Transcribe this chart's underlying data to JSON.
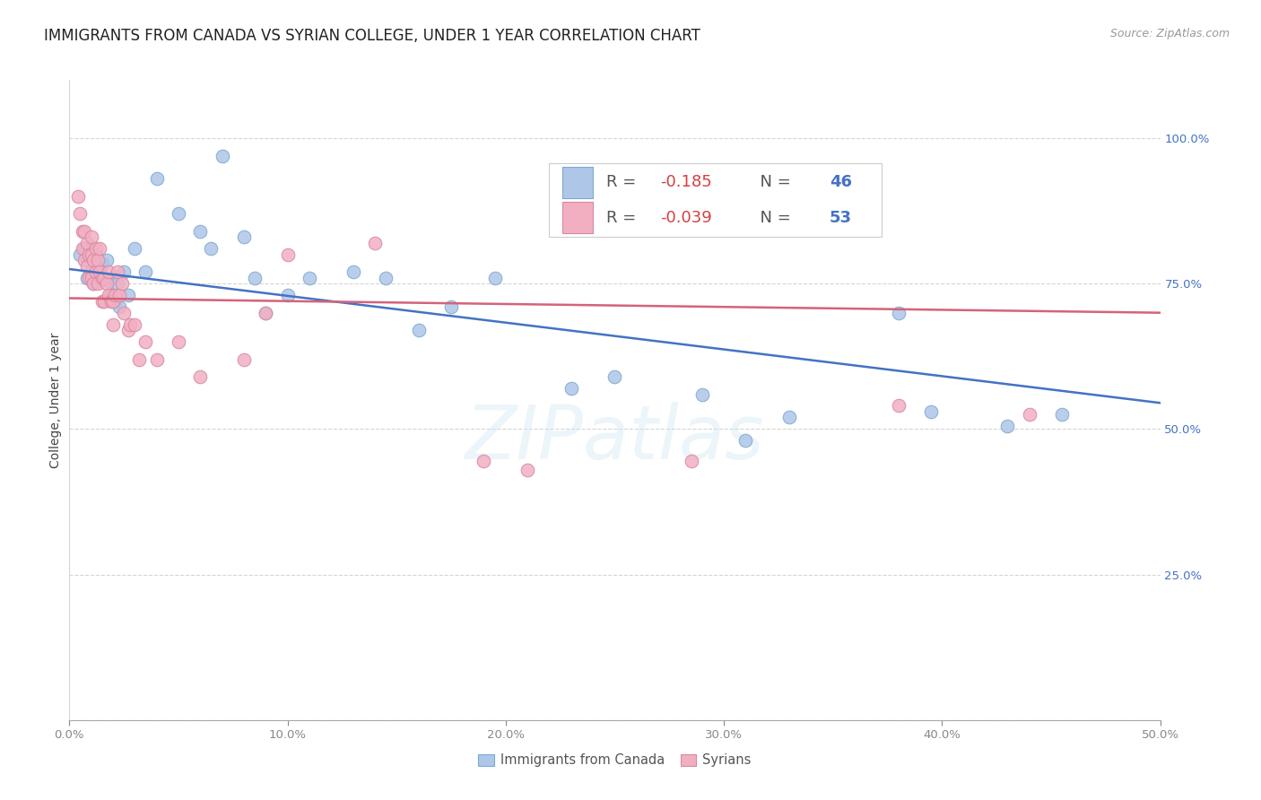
{
  "title": "IMMIGRANTS FROM CANADA VS SYRIAN COLLEGE, UNDER 1 YEAR CORRELATION CHART",
  "source": "Source: ZipAtlas.com",
  "ylabel": "College, Under 1 year",
  "xlim": [
    0.0,
    0.5
  ],
  "ylim": [
    0.0,
    1.1
  ],
  "xtick_vals": [
    0.0,
    0.1,
    0.2,
    0.3,
    0.4,
    0.5
  ],
  "xtick_labels": [
    "0.0%",
    "10.0%",
    "20.0%",
    "30.0%",
    "40.0%",
    "50.0%"
  ],
  "ytick_vals": [
    0.0,
    0.25,
    0.5,
    0.75,
    1.0
  ],
  "ytick_labels_right": [
    "",
    "25.0%",
    "50.0%",
    "75.0%",
    "100.0%"
  ],
  "canada_color": "#aec6e8",
  "canada_edge": "#7aaad0",
  "syria_color": "#f2afc2",
  "syria_edge": "#d888a0",
  "canada_line_color": "#4472c4",
  "syria_line_color": "#d4637a",
  "canada_line_y0": 0.775,
  "canada_line_y1": 0.545,
  "syria_line_y0": 0.725,
  "syria_line_y1": 0.7,
  "dot_size": 110,
  "background": "#ffffff",
  "grid_color": "#d5d5d5",
  "title_fontsize": 12,
  "source_fontsize": 9,
  "tick_fontsize": 9.5,
  "ylabel_fontsize": 10,
  "legend_fontsize": 13,
  "watermark_text": "ZIPatlas",
  "r_canada": "-0.185",
  "n_canada": "46",
  "r_syria": "-0.039",
  "n_syria": "53",
  "bottom_legend_canada": "Immigrants from Canada",
  "bottom_legend_syria": "Syrians",
  "canada_x": [
    0.005,
    0.007,
    0.008,
    0.009,
    0.01,
    0.011,
    0.012,
    0.013,
    0.014,
    0.015,
    0.016,
    0.017,
    0.018,
    0.019,
    0.02,
    0.021,
    0.022,
    0.023,
    0.025,
    0.027,
    0.03,
    0.035,
    0.04,
    0.05,
    0.06,
    0.065,
    0.07,
    0.08,
    0.085,
    0.09,
    0.1,
    0.11,
    0.13,
    0.145,
    0.16,
    0.175,
    0.195,
    0.23,
    0.25,
    0.29,
    0.31,
    0.33,
    0.38,
    0.395,
    0.43,
    0.455
  ],
  "canada_y": [
    0.8,
    0.81,
    0.76,
    0.79,
    0.77,
    0.75,
    0.8,
    0.77,
    0.755,
    0.785,
    0.76,
    0.79,
    0.755,
    0.73,
    0.76,
    0.72,
    0.75,
    0.71,
    0.77,
    0.73,
    0.81,
    0.77,
    0.93,
    0.87,
    0.84,
    0.81,
    0.97,
    0.83,
    0.76,
    0.7,
    0.73,
    0.76,
    0.77,
    0.76,
    0.67,
    0.71,
    0.76,
    0.57,
    0.59,
    0.56,
    0.48,
    0.52,
    0.7,
    0.53,
    0.505,
    0.525
  ],
  "syria_x": [
    0.004,
    0.005,
    0.006,
    0.006,
    0.007,
    0.007,
    0.008,
    0.008,
    0.009,
    0.009,
    0.01,
    0.01,
    0.01,
    0.011,
    0.011,
    0.012,
    0.012,
    0.013,
    0.013,
    0.014,
    0.014,
    0.015,
    0.015,
    0.016,
    0.016,
    0.017,
    0.018,
    0.018,
    0.019,
    0.02,
    0.02,
    0.021,
    0.022,
    0.023,
    0.024,
    0.025,
    0.027,
    0.028,
    0.03,
    0.032,
    0.035,
    0.04,
    0.05,
    0.06,
    0.08,
    0.09,
    0.1,
    0.14,
    0.19,
    0.21,
    0.285,
    0.38,
    0.44
  ],
  "syria_y": [
    0.9,
    0.87,
    0.84,
    0.81,
    0.84,
    0.79,
    0.82,
    0.78,
    0.8,
    0.76,
    0.83,
    0.8,
    0.76,
    0.79,
    0.75,
    0.81,
    0.77,
    0.79,
    0.75,
    0.81,
    0.77,
    0.76,
    0.72,
    0.76,
    0.72,
    0.75,
    0.77,
    0.73,
    0.72,
    0.72,
    0.68,
    0.73,
    0.77,
    0.73,
    0.75,
    0.7,
    0.67,
    0.68,
    0.68,
    0.62,
    0.65,
    0.62,
    0.65,
    0.59,
    0.62,
    0.7,
    0.8,
    0.82,
    0.445,
    0.43,
    0.445,
    0.54,
    0.525
  ]
}
